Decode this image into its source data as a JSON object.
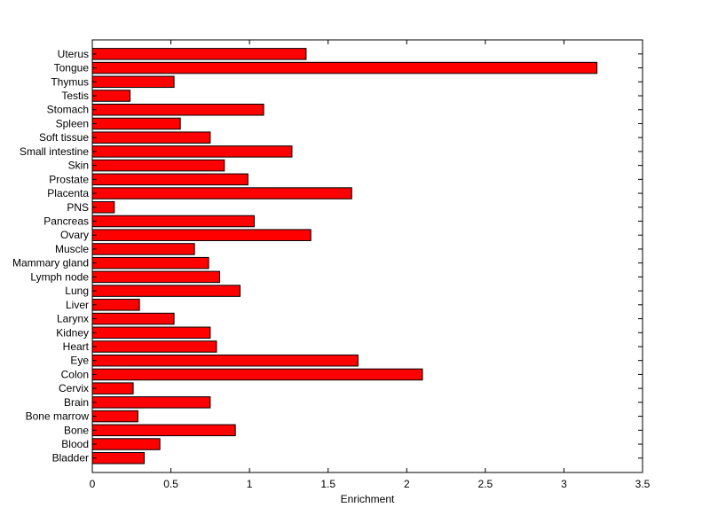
{
  "chart_data": {
    "type": "bar",
    "orientation": "horizontal",
    "title": "",
    "xlabel": "Enrichment",
    "ylabel": "",
    "xlim": [
      0,
      3.5
    ],
    "xticks": [
      "0",
      "0.5",
      "1",
      "1.5",
      "2",
      "2.5",
      "3",
      "3.5"
    ],
    "grid": false,
    "bar_color": "#ff0000",
    "bar_edge_color": "#000000",
    "categories": [
      "Bladder",
      "Blood",
      "Bone",
      "Bone marrow",
      "Brain",
      "Cervix",
      "Colon",
      "Eye",
      "Heart",
      "Kidney",
      "Larynx",
      "Liver",
      "Lung",
      "Lymph node",
      "Mammary gland",
      "Muscle",
      "Ovary",
      "Pancreas",
      "PNS",
      "Placenta",
      "Prostate",
      "Skin",
      "Small intestine",
      "Soft tissue",
      "Spleen",
      "Stomach",
      "Testis",
      "Thymus",
      "Tongue",
      "Uterus"
    ],
    "values": [
      0.33,
      0.43,
      0.91,
      0.29,
      0.75,
      0.26,
      2.1,
      1.69,
      0.79,
      0.75,
      0.52,
      0.3,
      0.94,
      0.81,
      0.74,
      0.65,
      1.39,
      1.03,
      0.14,
      1.65,
      0.99,
      0.84,
      1.27,
      0.75,
      0.56,
      1.09,
      0.24,
      0.52,
      3.21,
      1.36
    ]
  }
}
